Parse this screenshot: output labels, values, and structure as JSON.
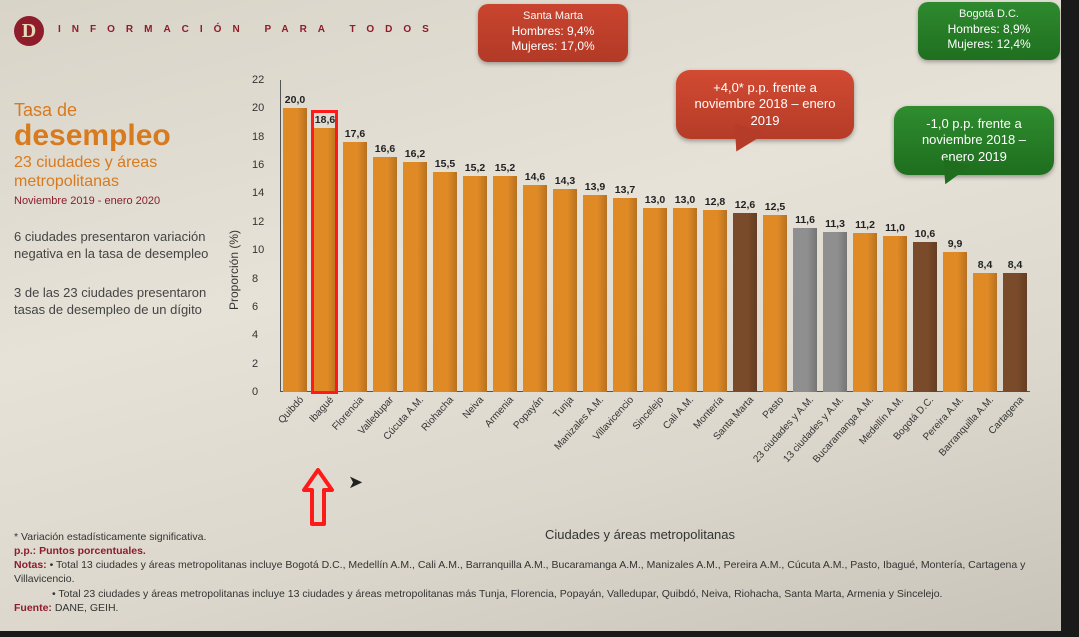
{
  "header": {
    "logo_letter": "D",
    "tagline": "INFORMACIÓN PARA TODOS"
  },
  "left": {
    "line1": "Tasa de",
    "line2": "desempleo",
    "line3": "23 ciudades y áreas metropolitanas",
    "period": "Noviembre 2019 - enero 2020",
    "para1": "6 ciudades presentaron variación negativa en la tasa de desempleo",
    "para2": "3 de las 23 ciudades presentaron tasas de desempleo de un dígito"
  },
  "chart": {
    "type": "bar",
    "ylabel": "Proporción (%)",
    "xlabel": "Ciudades y áreas metropolitanas",
    "ylim": [
      0,
      22
    ],
    "ytick_step": 2,
    "grid_color": "#b8b3a6",
    "bar_width": 0.78,
    "label_fontsize": 12,
    "value_fontsize": 10.5,
    "tick_fontsize": 11,
    "colors": {
      "orange": "#e08a26",
      "brown": "#7a4b2a",
      "gray": "#8f8f8f",
      "axis": "#555555",
      "highlight": "#ff1a1a"
    },
    "categories": [
      "Quibdó",
      "Ibagué",
      "Florencia",
      "Valledupar",
      "Cúcuta A.M.",
      "Riohacha",
      "Neiva",
      "Armenia",
      "Popayán",
      "Tunja",
      "Manizales A.M.",
      "Villavicencio",
      "Sincelejo",
      "Cali A.M.",
      "Montería",
      "Santa Marta",
      "Pasto",
      "23 ciudades y A.M.",
      "13 ciudades y A.M.",
      "Bucaramanga A.M.",
      "Medellín A.M.",
      "Bogotá D.C.",
      "Pereira A.M.",
      "Barranquilla A.M.",
      "Cartagena"
    ],
    "values": [
      20.0,
      18.6,
      17.6,
      16.6,
      16.2,
      15.5,
      15.2,
      15.2,
      14.6,
      14.3,
      13.9,
      13.7,
      13.0,
      13.0,
      12.8,
      12.6,
      12.5,
      11.6,
      11.3,
      11.2,
      11.0,
      10.6,
      9.9,
      8.4,
      8.4
    ],
    "value_bold": [
      0,
      0,
      0,
      0,
      0,
      0,
      0,
      0,
      0,
      0,
      0,
      0,
      0,
      0,
      0,
      1,
      0,
      1,
      1,
      0,
      0,
      1,
      0,
      0,
      1
    ],
    "bar_style": [
      "o",
      "o",
      "o",
      "o",
      "o",
      "o",
      "o",
      "o",
      "o",
      "o",
      "o",
      "o",
      "o",
      "o",
      "o",
      "b",
      "o",
      "g",
      "g",
      "o",
      "o",
      "b",
      "o",
      "o",
      "b"
    ],
    "highlight_index": 1
  },
  "callouts": {
    "santa_marta": {
      "title": "Santa Marta",
      "l1": "Hombres: 9,4%",
      "l2": "Mujeres: 17,0%"
    },
    "bogota": {
      "title": "Bogotá D.C.",
      "l1": "Hombres: 8,9%",
      "l2": "Mujeres: 12,4%"
    },
    "bubble_red": "+4,0* p.p. frente a noviembre 2018 – enero 2019",
    "bubble_green": "-1,0 p.p. frente a noviembre 2018 – enero 2019"
  },
  "footnotes": {
    "star": "* Variación estadísticamente significativa.",
    "pp": "p.p.: Puntos porcentuales.",
    "notas_label": "Notas:",
    "nota1": "• Total 13 ciudades y áreas metropolitanas incluye Bogotá D.C., Medellín A.M., Cali A.M., Barranquilla A.M., Bucaramanga A.M., Manizales A.M., Pereira A.M., Cúcuta A.M., Pasto, Ibagué, Montería, Cartagena y Villavicencio.",
    "nota2": "• Total 23 ciudades y áreas metropolitanas incluye 13 ciudades y áreas metropolitanas más Tunja, Florencia, Popayán, Valledupar, Quibdó, Neiva, Riohacha, Santa Marta, Armenia y Sincelejo.",
    "fuente_label": "Fuente:",
    "fuente": "DANE, GEIH."
  }
}
